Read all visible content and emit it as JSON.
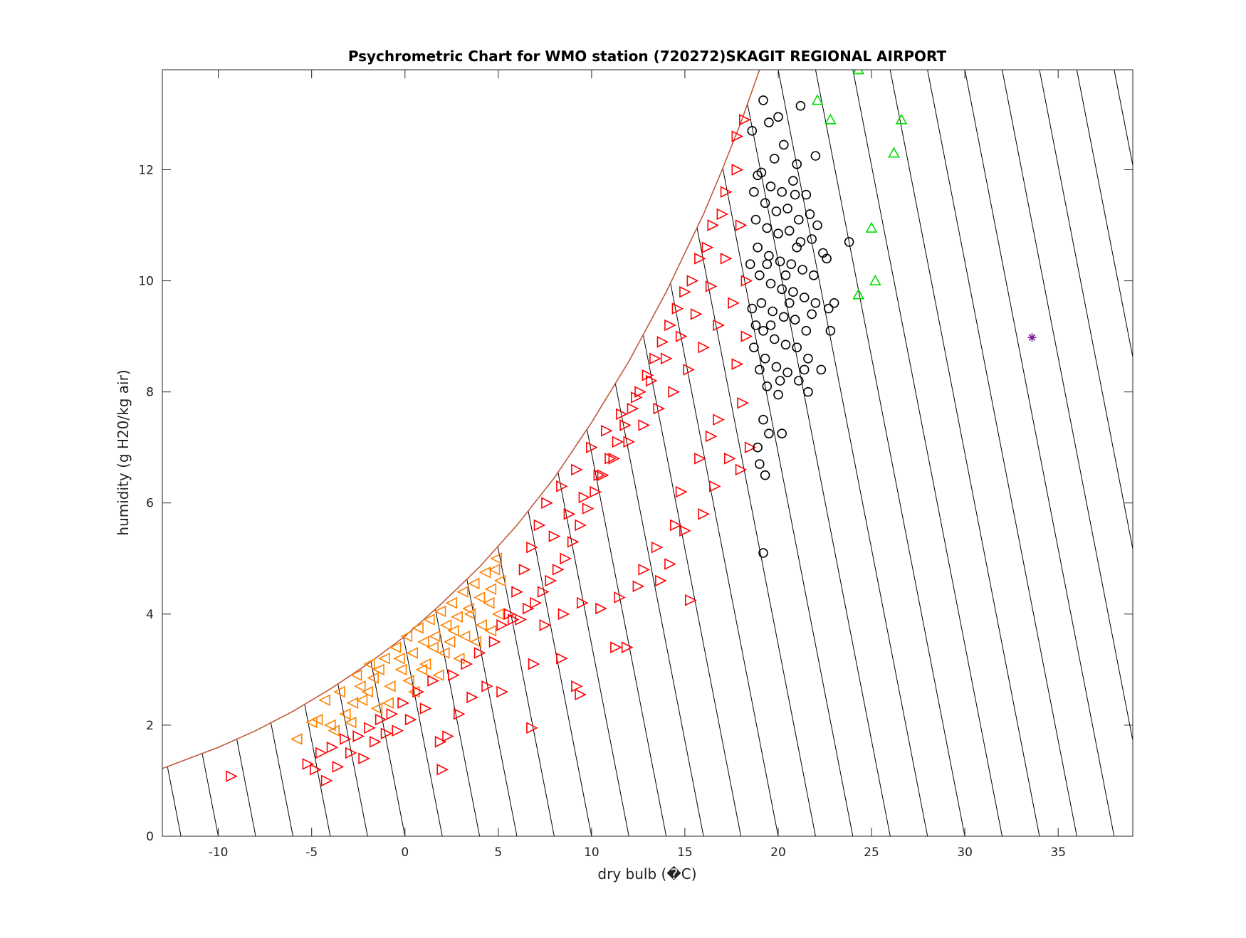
{
  "chart_data": {
    "type": "scatter",
    "title": "Psychrometric Chart for WMO station (720272)SKAGIT REGIONAL AIRPORT",
    "xlabel": "dry bulb (�C)",
    "ylabel": "humidity (g H20/kg air)",
    "xlim": [
      -13,
      39
    ],
    "ylim": [
      0,
      13.8
    ],
    "xticks": [
      -10,
      -5,
      0,
      5,
      10,
      15,
      20,
      25,
      30,
      35
    ],
    "yticks": [
      0,
      2,
      4,
      6,
      8,
      10,
      12
    ],
    "grid": false,
    "colors": {
      "saturation_curve": "#c05a3a",
      "wet_bulb_lines": "#000000",
      "orange_triangles": "#ff8000",
      "red_triangles": "#ff0000",
      "black_circles": "#000000",
      "green_triangles": "#00dd00",
      "purple_star": "#7a1a8c"
    },
    "saturation_curve": [
      [
        -13,
        1.22
      ],
      [
        -10,
        1.6
      ],
      [
        -8,
        1.9
      ],
      [
        -6,
        2.25
      ],
      [
        -4,
        2.65
      ],
      [
        -2,
        3.1
      ],
      [
        0,
        3.6
      ],
      [
        2,
        4.2
      ],
      [
        4,
        4.85
      ],
      [
        6,
        5.6
      ],
      [
        8,
        6.45
      ],
      [
        10,
        7.45
      ],
      [
        12,
        8.55
      ],
      [
        14,
        9.8
      ],
      [
        16,
        11.2
      ],
      [
        17,
        12.0
      ],
      [
        18,
        12.85
      ],
      [
        19,
        13.8
      ]
    ],
    "series": [
      {
        "marker": "triangle-left",
        "color": "#ff8000",
        "points": [
          [
            -5.8,
            1.75
          ],
          [
            -5.0,
            2.05
          ],
          [
            -4.7,
            2.1
          ],
          [
            -4.3,
            2.45
          ],
          [
            -3.8,
            1.9
          ],
          [
            -3.2,
            2.2
          ],
          [
            -2.9,
            2.05
          ],
          [
            -2.6,
            2.9
          ],
          [
            -2.3,
            2.45
          ],
          [
            -2.0,
            2.6
          ],
          [
            -1.7,
            2.85
          ],
          [
            -1.4,
            3.0
          ],
          [
            -1.1,
            3.2
          ],
          [
            -0.8,
            2.7
          ],
          [
            -0.5,
            3.4
          ],
          [
            -0.2,
            3.0
          ],
          [
            0.1,
            3.6
          ],
          [
            0.4,
            3.3
          ],
          [
            0.7,
            3.75
          ],
          [
            1.0,
            3.5
          ],
          [
            1.3,
            3.9
          ],
          [
            1.6,
            3.6
          ],
          [
            1.9,
            4.05
          ],
          [
            2.2,
            3.8
          ],
          [
            2.5,
            4.2
          ],
          [
            2.8,
            3.95
          ],
          [
            3.1,
            4.4
          ],
          [
            3.4,
            4.1
          ],
          [
            3.7,
            4.55
          ],
          [
            4.0,
            4.3
          ],
          [
            4.3,
            4.75
          ],
          [
            4.6,
            4.45
          ],
          [
            4.9,
            5.0
          ],
          [
            5.1,
            4.6
          ],
          [
            0.2,
            2.8
          ],
          [
            1.1,
            3.1
          ],
          [
            2.1,
            3.3
          ],
          [
            3.2,
            3.6
          ],
          [
            4.1,
            3.8
          ],
          [
            5.0,
            4.0
          ],
          [
            -0.9,
            2.4
          ],
          [
            0.5,
            2.6
          ],
          [
            1.8,
            2.9
          ],
          [
            2.9,
            3.2
          ],
          [
            -1.5,
            2.3
          ],
          [
            3.8,
            3.5
          ],
          [
            4.6,
            3.7
          ],
          [
            -2.4,
            2.7
          ],
          [
            -3.5,
            2.6
          ],
          [
            -0.3,
            3.2
          ],
          [
            1.5,
            3.4
          ],
          [
            2.6,
            3.7
          ],
          [
            3.5,
            4.0
          ],
          [
            4.5,
            4.2
          ],
          [
            0.9,
            3.0
          ],
          [
            2.4,
            3.5
          ],
          [
            4.8,
            4.8
          ],
          [
            -1.9,
            3.1
          ],
          [
            -2.8,
            2.4
          ],
          [
            -4.0,
            2.0
          ]
        ]
      },
      {
        "marker": "triangle-right",
        "color": "#ff0000",
        "points": [
          [
            -9.3,
            1.08
          ],
          [
            -5.2,
            1.3
          ],
          [
            -4.8,
            1.2
          ],
          [
            -4.5,
            1.5
          ],
          [
            -4.2,
            1.0
          ],
          [
            -3.9,
            1.6
          ],
          [
            -3.6,
            1.25
          ],
          [
            -3.2,
            1.75
          ],
          [
            -2.9,
            1.5
          ],
          [
            -2.5,
            1.8
          ],
          [
            -2.2,
            1.4
          ],
          [
            -1.9,
            1.95
          ],
          [
            -1.6,
            1.7
          ],
          [
            -1.3,
            2.1
          ],
          [
            -1.0,
            1.85
          ],
          [
            -0.7,
            2.2
          ],
          [
            -0.4,
            1.9
          ],
          [
            -0.1,
            2.4
          ],
          [
            0.3,
            2.1
          ],
          [
            0.7,
            2.6
          ],
          [
            1.1,
            2.3
          ],
          [
            1.5,
            2.8
          ],
          [
            1.9,
            1.7
          ],
          [
            2.0,
            1.2
          ],
          [
            2.3,
            1.8
          ],
          [
            2.6,
            2.9
          ],
          [
            2.9,
            2.2
          ],
          [
            3.3,
            3.1
          ],
          [
            3.6,
            2.5
          ],
          [
            4.0,
            3.3
          ],
          [
            4.4,
            2.7
          ],
          [
            4.8,
            3.5
          ],
          [
            5.2,
            2.6
          ],
          [
            5.2,
            3.8
          ],
          [
            6.8,
            1.95
          ],
          [
            6.9,
            3.1
          ],
          [
            8.4,
            3.2
          ],
          [
            9.2,
            2.7
          ],
          [
            9.4,
            2.55
          ],
          [
            11.3,
            3.4
          ],
          [
            11.9,
            3.4
          ],
          [
            15.3,
            4.25
          ],
          [
            13.7,
            4.6
          ],
          [
            14.2,
            4.9
          ],
          [
            15.0,
            5.5
          ],
          [
            16.0,
            5.8
          ],
          [
            16.6,
            6.3
          ],
          [
            17.4,
            6.8
          ],
          [
            18.0,
            6.6
          ],
          [
            18.5,
            7.0
          ],
          [
            5.6,
            4.0
          ],
          [
            6.0,
            4.4
          ],
          [
            6.4,
            4.8
          ],
          [
            6.8,
            5.2
          ],
          [
            7.2,
            5.6
          ],
          [
            7.6,
            6.0
          ],
          [
            8.0,
            5.4
          ],
          [
            8.4,
            6.3
          ],
          [
            8.8,
            5.8
          ],
          [
            9.2,
            6.6
          ],
          [
            9.6,
            6.1
          ],
          [
            10.0,
            7.0
          ],
          [
            10.4,
            6.5
          ],
          [
            10.8,
            7.3
          ],
          [
            11.2,
            6.8
          ],
          [
            11.6,
            7.6
          ],
          [
            12.0,
            7.1
          ],
          [
            12.4,
            7.9
          ],
          [
            12.8,
            7.4
          ],
          [
            13.2,
            8.2
          ],
          [
            13.6,
            7.7
          ],
          [
            14.0,
            8.6
          ],
          [
            14.4,
            8.0
          ],
          [
            14.8,
            9.0
          ],
          [
            15.2,
            8.4
          ],
          [
            15.6,
            9.4
          ],
          [
            16.0,
            8.8
          ],
          [
            16.4,
            9.9
          ],
          [
            16.8,
            9.2
          ],
          [
            17.2,
            10.4
          ],
          [
            17.6,
            9.6
          ],
          [
            18.0,
            11.0
          ],
          [
            18.3,
            10.0
          ],
          [
            17.8,
            12.0
          ],
          [
            17.2,
            11.6
          ],
          [
            16.5,
            11.0
          ],
          [
            15.8,
            10.4
          ],
          [
            15.0,
            9.8
          ],
          [
            14.2,
            9.2
          ],
          [
            13.4,
            8.6
          ],
          [
            12.6,
            8.0
          ],
          [
            11.8,
            7.4
          ],
          [
            11.0,
            6.8
          ],
          [
            10.2,
            6.2
          ],
          [
            9.4,
            5.6
          ],
          [
            8.6,
            5.0
          ],
          [
            7.8,
            4.6
          ],
          [
            7.0,
            4.2
          ],
          [
            6.2,
            3.9
          ],
          [
            17.8,
            12.6
          ],
          [
            18.2,
            12.9
          ],
          [
            17.0,
            11.2
          ],
          [
            16.2,
            10.6
          ],
          [
            15.4,
            10.0
          ],
          [
            14.6,
            9.5
          ],
          [
            13.8,
            8.9
          ],
          [
            13.0,
            8.3
          ],
          [
            12.2,
            7.7
          ],
          [
            11.4,
            7.1
          ],
          [
            10.6,
            6.5
          ],
          [
            9.8,
            5.9
          ],
          [
            9.0,
            5.3
          ],
          [
            8.2,
            4.8
          ],
          [
            7.4,
            4.4
          ],
          [
            6.6,
            4.1
          ],
          [
            5.8,
            3.9
          ],
          [
            10.5,
            4.1
          ],
          [
            11.5,
            4.3
          ],
          [
            12.5,
            4.5
          ],
          [
            9.5,
            4.2
          ],
          [
            8.5,
            4.0
          ],
          [
            7.5,
            3.8
          ],
          [
            13.5,
            5.2
          ],
          [
            14.5,
            5.6
          ],
          [
            12.8,
            4.8
          ],
          [
            16.8,
            7.5
          ],
          [
            17.8,
            8.5
          ],
          [
            18.3,
            9.0
          ],
          [
            18.1,
            7.8
          ],
          [
            15.8,
            6.8
          ],
          [
            14.8,
            6.2
          ],
          [
            16.4,
            7.2
          ]
        ]
      },
      {
        "marker": "circle",
        "color": "#000000",
        "points": [
          [
            19.2,
            13.25
          ],
          [
            20.0,
            12.95
          ],
          [
            21.2,
            13.15
          ],
          [
            19.5,
            12.85
          ],
          [
            18.6,
            12.7
          ],
          [
            19.8,
            12.2
          ],
          [
            20.3,
            12.45
          ],
          [
            21.0,
            12.1
          ],
          [
            22.0,
            12.25
          ],
          [
            19.1,
            11.95
          ],
          [
            19.6,
            11.7
          ],
          [
            20.2,
            11.6
          ],
          [
            20.8,
            11.8
          ],
          [
            21.5,
            11.55
          ],
          [
            18.7,
            11.6
          ],
          [
            19.3,
            11.4
          ],
          [
            19.9,
            11.25
          ],
          [
            20.5,
            11.3
          ],
          [
            21.1,
            11.1
          ],
          [
            21.7,
            11.2
          ],
          [
            18.8,
            11.1
          ],
          [
            19.4,
            10.95
          ],
          [
            20.0,
            10.85
          ],
          [
            20.6,
            10.9
          ],
          [
            21.2,
            10.7
          ],
          [
            21.8,
            10.75
          ],
          [
            22.4,
            10.5
          ],
          [
            18.9,
            10.6
          ],
          [
            19.5,
            10.45
          ],
          [
            20.1,
            10.35
          ],
          [
            20.7,
            10.3
          ],
          [
            21.3,
            10.2
          ],
          [
            21.9,
            10.1
          ],
          [
            22.6,
            10.4
          ],
          [
            19.0,
            10.1
          ],
          [
            19.6,
            9.95
          ],
          [
            20.2,
            9.85
          ],
          [
            20.8,
            9.8
          ],
          [
            21.4,
            9.7
          ],
          [
            22.0,
            9.6
          ],
          [
            22.7,
            9.5
          ],
          [
            23.0,
            9.6
          ],
          [
            19.1,
            9.6
          ],
          [
            19.7,
            9.45
          ],
          [
            20.3,
            9.35
          ],
          [
            20.9,
            9.3
          ],
          [
            21.5,
            9.1
          ],
          [
            19.2,
            9.1
          ],
          [
            19.8,
            8.95
          ],
          [
            20.4,
            8.85
          ],
          [
            21.0,
            8.8
          ],
          [
            21.6,
            8.6
          ],
          [
            19.3,
            8.6
          ],
          [
            19.9,
            8.45
          ],
          [
            20.5,
            8.35
          ],
          [
            21.1,
            8.2
          ],
          [
            22.3,
            8.4
          ],
          [
            19.4,
            8.1
          ],
          [
            20.0,
            7.95
          ],
          [
            21.6,
            8.0
          ],
          [
            19.2,
            7.5
          ],
          [
            19.5,
            7.25
          ],
          [
            18.9,
            7.0
          ],
          [
            20.2,
            7.25
          ],
          [
            19.0,
            6.7
          ],
          [
            19.3,
            6.5
          ],
          [
            19.2,
            5.1
          ],
          [
            23.8,
            10.7
          ],
          [
            22.8,
            9.1
          ],
          [
            18.6,
            9.5
          ],
          [
            18.7,
            8.8
          ],
          [
            18.5,
            10.3
          ],
          [
            18.8,
            9.2
          ],
          [
            19.0,
            8.4
          ],
          [
            19.6,
            9.2
          ],
          [
            20.4,
            10.1
          ],
          [
            21.0,
            10.6
          ],
          [
            21.8,
            9.4
          ],
          [
            20.6,
            9.6
          ],
          [
            19.4,
            10.3
          ],
          [
            18.9,
            11.9
          ],
          [
            20.9,
            11.55
          ],
          [
            22.1,
            11.0
          ],
          [
            21.4,
            8.4
          ],
          [
            20.1,
            8.2
          ]
        ]
      },
      {
        "marker": "triangle-up",
        "color": "#00dd00",
        "points": [
          [
            24.3,
            13.8
          ],
          [
            22.1,
            13.25
          ],
          [
            22.8,
            12.9
          ],
          [
            26.6,
            12.9
          ],
          [
            26.2,
            12.3
          ],
          [
            25.0,
            10.95
          ],
          [
            25.2,
            10.0
          ],
          [
            24.3,
            9.75
          ]
        ]
      },
      {
        "marker": "star",
        "color": "#7a1a8c",
        "points": [
          [
            33.6,
            8.98
          ]
        ]
      }
    ]
  }
}
